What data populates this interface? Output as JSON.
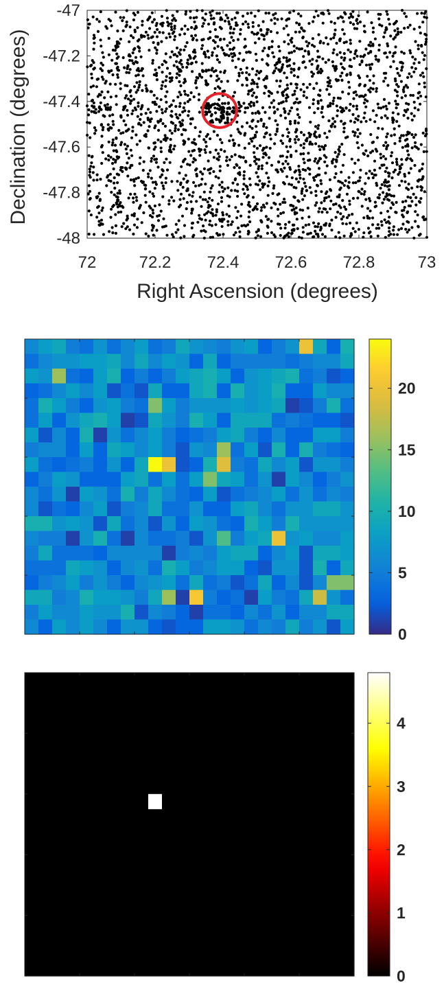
{
  "chart_data": [
    {
      "type": "scatter",
      "xlabel": "Right Ascension (degrees)",
      "ylabel": "Declination (degrees)",
      "xlim": [
        72,
        73
      ],
      "ylim": [
        -48,
        -47
      ],
      "xticks": [
        "72",
        "72.2",
        "72.4",
        "72.6",
        "72.8",
        "73"
      ],
      "yticks": [
        "-47",
        "-47.2",
        "-47.4",
        "-47.6",
        "-47.8",
        "-48"
      ],
      "point_color": "#000000",
      "point_count": 2600,
      "dense_cluster": {
        "ra": 72.39,
        "dec": -47.45
      },
      "highlight": {
        "type": "circle",
        "ra": 72.39,
        "dec": -47.44,
        "radius_deg": 0.05,
        "color": "#e8222a"
      }
    },
    {
      "type": "heatmap",
      "colormap": "parula",
      "rows": 20,
      "cols": 24,
      "clim": [
        0,
        24
      ],
      "colorbar_ticks": [
        "0",
        "5",
        "10",
        "15",
        "20"
      ],
      "background_range": [
        2,
        10
      ],
      "notable_cells": [
        {
          "row": 0,
          "col": 20,
          "value": 20
        },
        {
          "row": 8,
          "col": 9,
          "value": 24
        },
        {
          "row": 8,
          "col": 10,
          "value": 20
        },
        {
          "row": 8,
          "col": 14,
          "value": 19
        },
        {
          "row": 7,
          "col": 14,
          "value": 16
        },
        {
          "row": 2,
          "col": 2,
          "value": 16
        },
        {
          "row": 13,
          "col": 18,
          "value": 20
        },
        {
          "row": 17,
          "col": 12,
          "value": 21
        },
        {
          "row": 17,
          "col": 10,
          "value": 16
        },
        {
          "row": 17,
          "col": 21,
          "value": 18
        },
        {
          "row": 16,
          "col": 22,
          "value": 15
        },
        {
          "row": 16,
          "col": 23,
          "value": 15
        },
        {
          "row": 4,
          "col": 9,
          "value": 15
        },
        {
          "row": 9,
          "col": 13,
          "value": 15
        },
        {
          "row": 13,
          "col": 14,
          "value": 13
        },
        {
          "row": 6,
          "col": 5,
          "value": 1
        },
        {
          "row": 5,
          "col": 7,
          "value": 1
        },
        {
          "row": 10,
          "col": 3,
          "value": 1
        },
        {
          "row": 13,
          "col": 3,
          "value": 1
        },
        {
          "row": 13,
          "col": 7,
          "value": 1
        },
        {
          "row": 14,
          "col": 10,
          "value": 1
        },
        {
          "row": 17,
          "col": 11,
          "value": 1
        },
        {
          "row": 18,
          "col": 12,
          "value": 1
        },
        {
          "row": 17,
          "col": 16,
          "value": 1
        },
        {
          "row": 4,
          "col": 19,
          "value": 1
        },
        {
          "row": 9,
          "col": 18,
          "value": 1
        }
      ]
    },
    {
      "type": "heatmap",
      "colormap": "hot",
      "rows": 20,
      "cols": 24,
      "clim": [
        0,
        4.8
      ],
      "colorbar_ticks": [
        "0",
        "1",
        "2",
        "3",
        "4"
      ],
      "background_value": 0,
      "notable_cells": [
        {
          "row": 8,
          "col": 9,
          "value": 4.8
        }
      ]
    }
  ]
}
